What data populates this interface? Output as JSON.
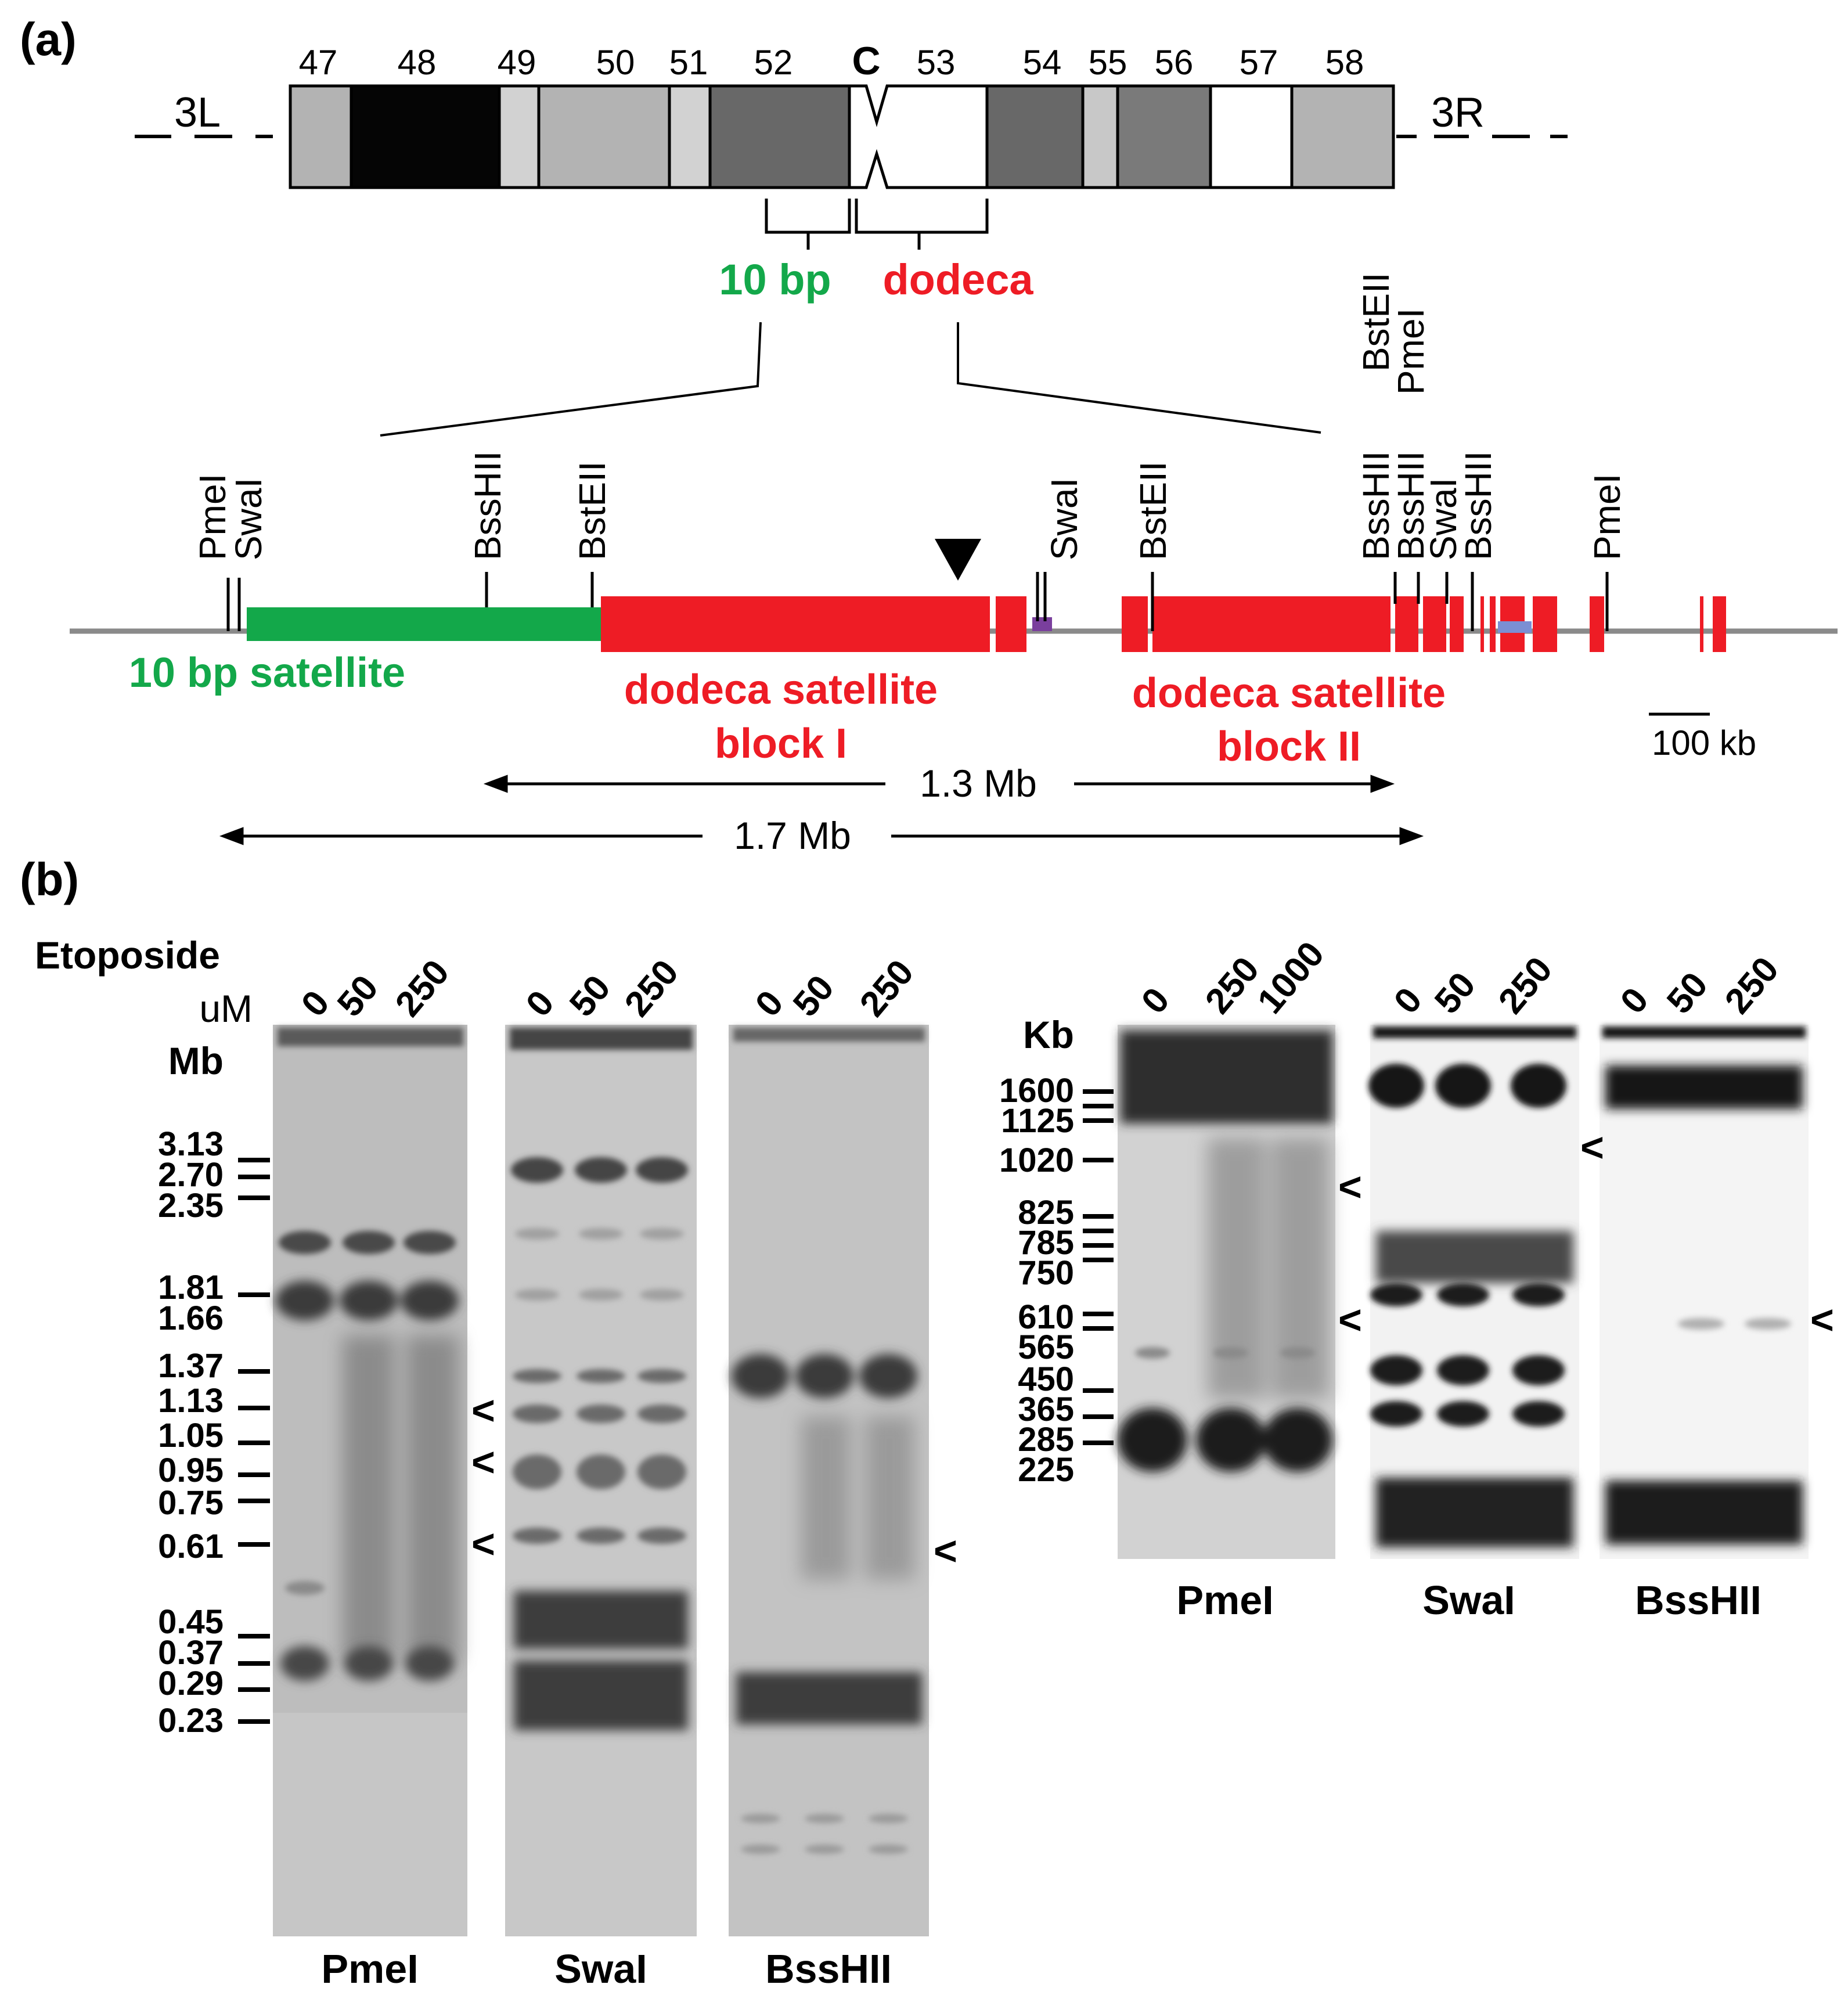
{
  "panel_a": {
    "label": "(a)",
    "arm_left": "3L",
    "arm_right": "3R",
    "centromere": "C",
    "map_bands": [
      "47",
      "48",
      "49",
      "50",
      "51",
      "52",
      "53",
      "54",
      "55",
      "56",
      "57",
      "58"
    ],
    "bracket_10bp": "10 bp",
    "bracket_dodeca": "dodeca",
    "site_labels": [
      "PmeI",
      "SwaI",
      "BssHII",
      "BstEII",
      "SwaI",
      "BstEII",
      "BssHII",
      "BstEII",
      "BssHII",
      "PmeI",
      "SwaI",
      "BssHII",
      "PmeI"
    ],
    "satellite_10bp": "10 bp satellite",
    "block1_line1": "dodeca satellite",
    "block1_line2": "block I",
    "block2_line1": "dodeca satellite",
    "block2_line2": "block II",
    "scale_label": "100 kb",
    "span_13": "1.3 Mb",
    "span_17": "1.7 Mb",
    "colors": {
      "green": "#13a84a",
      "red": "#ee1c25",
      "gray_line": "#8a8a8a",
      "purple": "#7a3f9d",
      "blue": "#7b8fd4"
    }
  },
  "panel_b": {
    "label": "(b)",
    "etoposide": "Etoposide",
    "unit_um": "uM",
    "unit_mb": "Mb",
    "unit_kb": "Kb",
    "left_gels": [
      {
        "name": "PmeI",
        "conc": [
          "0",
          "50",
          "250"
        ]
      },
      {
        "name": "SwaI",
        "conc": [
          "0",
          "50",
          "250"
        ]
      },
      {
        "name": "BssHII",
        "conc": [
          "0",
          "50",
          "250"
        ]
      }
    ],
    "right_gels": [
      {
        "name": "PmeI",
        "conc": [
          "0",
          "250",
          "1000"
        ]
      },
      {
        "name": "SwaI",
        "conc": [
          "0",
          "50",
          "250"
        ]
      },
      {
        "name": "BssHII",
        "conc": [
          "0",
          "50",
          "250"
        ]
      }
    ],
    "mb_markers": [
      "3.13",
      "2.70",
      "2.35",
      "1.81",
      "1.66",
      "1.37",
      "1.13",
      "1.05",
      "0.95",
      "0.75",
      "0.61",
      "0.45",
      "0.37",
      "0.29",
      "0.23"
    ],
    "kb_markers": [
      "1600",
      "1125",
      "1020",
      "825",
      "785",
      "750",
      "610",
      "565",
      "450",
      "365",
      "285",
      "225"
    ],
    "arrow_symbol": "<"
  }
}
